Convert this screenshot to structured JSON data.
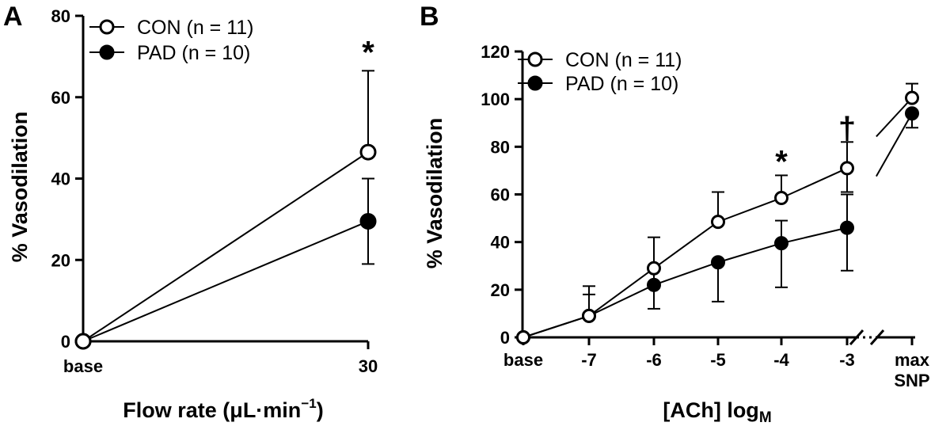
{
  "chart_data": [
    {
      "panel": "A",
      "type": "line",
      "xlabel_main": "Flow rate (μL·min",
      "xlabel_sup": "−1",
      "xlabel_end": ")",
      "ylabel": "% Vasodilation",
      "ylim": [
        0,
        80
      ],
      "yticks": [
        0,
        20,
        40,
        60,
        80
      ],
      "categories": [
        "base",
        "30"
      ],
      "legend_position": "top-left",
      "series": [
        {
          "name": "CON (n = 11)",
          "marker": "open-circle",
          "values": [
            0,
            46.5
          ],
          "err_up": [
            0,
            20
          ],
          "err_down": [
            0,
            0
          ]
        },
        {
          "name": "PAD (n = 10)",
          "marker": "filled-circle",
          "values": [
            0,
            29.5
          ],
          "err_up": [
            0,
            10.5
          ],
          "err_down": [
            0,
            10.5
          ]
        }
      ],
      "annotations": [
        {
          "text": "*",
          "category": "30"
        }
      ]
    },
    {
      "panel": "B",
      "type": "line",
      "xlabel_main": "[ACh] log",
      "xlabel_sub": "M",
      "ylabel": "% Vasodilation",
      "ylim": [
        0,
        120
      ],
      "yticks": [
        0,
        20,
        40,
        60,
        80,
        100,
        120
      ],
      "categories": [
        "base",
        "-7",
        "-6",
        "-5",
        "-4",
        "-3",
        "max|SNP"
      ],
      "axis_break_after": "-3",
      "legend_position": "top-left",
      "series": [
        {
          "name": "CON (n = 11)",
          "marker": "open-circle",
          "values": [
            0,
            9,
            29,
            48.5,
            58.5,
            71,
            100.5
          ],
          "err_up": [
            0,
            12.5,
            13,
            12.5,
            9.5,
            11,
            6
          ],
          "err_down": [
            0,
            0,
            0,
            0,
            0,
            10,
            0
          ]
        },
        {
          "name": "PAD (n = 10)",
          "marker": "filled-circle",
          "values": [
            0,
            9,
            22,
            31.5,
            39.5,
            46,
            94
          ],
          "err_up": [
            0,
            9,
            8,
            0,
            9.5,
            14,
            0
          ],
          "err_down": [
            0,
            0,
            10,
            16.5,
            18.5,
            18,
            6
          ]
        }
      ],
      "annotations": [
        {
          "text": "*",
          "category": "-4"
        },
        {
          "text": "†",
          "category": "-3"
        }
      ]
    }
  ]
}
